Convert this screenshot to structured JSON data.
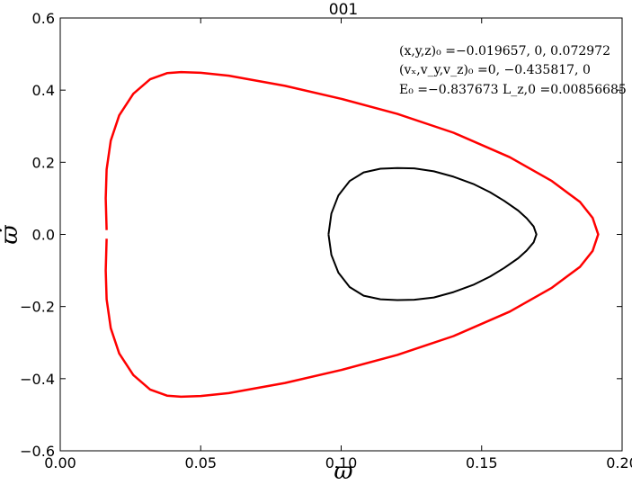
{
  "chart_data": {
    "type": "line",
    "title": "001",
    "xlabel": "ϖ",
    "ylabel": "ϖ̇",
    "xlim": [
      0.0,
      0.2
    ],
    "ylim": [
      -0.6,
      0.6
    ],
    "x_ticks": [
      0.0,
      0.05,
      0.1,
      0.15,
      0.2
    ],
    "x_tick_labels": [
      "0.00",
      "0.05",
      "0.10",
      "0.15",
      "0.20"
    ],
    "y_ticks": [
      -0.6,
      -0.4,
      -0.2,
      0.0,
      0.2,
      0.4,
      0.6
    ],
    "y_tick_labels": [
      "−0.6",
      "−0.4",
      "−0.2",
      "0.0",
      "0.2",
      "0.4",
      "0.6"
    ],
    "grid": false,
    "annotations": [
      "(x,y,z)₀ =−0.019657, 0, 0.072972",
      "(vₓ,v_y,v_z)₀ =0, −0.435817, 0",
      "E₀ =−0.837673   L_z,0 =0.00856685"
    ],
    "series": [
      {
        "color": "#ff0000",
        "x": [
          0.0165,
          0.0162,
          0.0165,
          0.018,
          0.021,
          0.026,
          0.032,
          0.038,
          0.043,
          0.05,
          0.06,
          0.08,
          0.1,
          0.12,
          0.14,
          0.16,
          0.175,
          0.185,
          0.1895,
          0.1915,
          0.1895,
          0.185,
          0.175,
          0.16,
          0.14,
          0.12,
          0.1,
          0.08,
          0.06,
          0.05,
          0.043,
          0.038,
          0.032,
          0.026,
          0.021,
          0.018,
          0.0165,
          0.0162,
          0.0165
        ],
        "y": [
          0.012,
          0.1,
          0.18,
          0.26,
          0.33,
          0.39,
          0.43,
          0.447,
          0.45,
          0.448,
          0.44,
          0.412,
          0.376,
          0.334,
          0.282,
          0.214,
          0.148,
          0.09,
          0.046,
          0.0,
          -0.046,
          -0.09,
          -0.148,
          -0.214,
          -0.282,
          -0.334,
          -0.376,
          -0.412,
          -0.44,
          -0.448,
          -0.45,
          -0.447,
          -0.43,
          -0.39,
          -0.33,
          -0.26,
          -0.18,
          -0.1,
          -0.012
        ]
      },
      {
        "color": "#000000",
        "x": [
          0.0955,
          0.0965,
          0.099,
          0.103,
          0.108,
          0.114,
          0.12,
          0.126,
          0.133,
          0.14,
          0.147,
          0.153,
          0.158,
          0.163,
          0.166,
          0.1685,
          0.1695,
          0.1685,
          0.166,
          0.163,
          0.158,
          0.153,
          0.147,
          0.14,
          0.133,
          0.126,
          0.12,
          0.114,
          0.108,
          0.103,
          0.099,
          0.0965,
          0.0955
        ],
        "y": [
          0.0,
          0.058,
          0.108,
          0.148,
          0.172,
          0.182,
          0.184,
          0.183,
          0.175,
          0.16,
          0.14,
          0.117,
          0.093,
          0.066,
          0.045,
          0.022,
          0.0,
          -0.022,
          -0.045,
          -0.066,
          -0.093,
          -0.117,
          -0.14,
          -0.16,
          -0.175,
          -0.181,
          -0.182,
          -0.18,
          -0.17,
          -0.146,
          -0.106,
          -0.057,
          0.0
        ]
      }
    ]
  }
}
